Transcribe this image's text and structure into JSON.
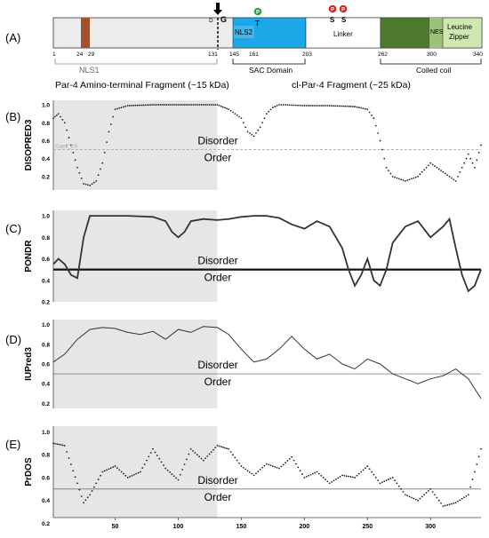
{
  "panel_labels": {
    "a": "(A)",
    "b": "(B)",
    "c": "(C)",
    "d": "(D)",
    "e": "(E)"
  },
  "domain_map": {
    "residue_ticks": [
      "1",
      "24",
      "29",
      "131",
      "145",
      "161",
      "203",
      "262",
      "300",
      "340"
    ],
    "site_letters": {
      "d": "D",
      "g": "G",
      "t": "T",
      "s1": "S",
      "s2": "S"
    },
    "phospho_badges": {
      "green": "P",
      "red1": "P",
      "red2": "P"
    },
    "domain_texts": {
      "nls2": "NLS2",
      "linker": "Linker",
      "nes": "NES",
      "lz1": "Leucine",
      "lz2": "Zipper"
    },
    "bracket_labels": {
      "nls1": "NLS1",
      "sac": "SAC Domain",
      "coiled": "Coiled coil"
    },
    "fragment_labels": {
      "amino": "Par-4 Amino-terminal Fragment (~15 kDa)",
      "cl": "cl-Par-4 Fragment (~25 kDa)"
    },
    "colors": {
      "nls1_mark": "#a0522d",
      "sac": "#1ea7e8",
      "coiled": "#4e7a2e",
      "nes": "#9dc07a",
      "leucine": "#cfe8b0",
      "green_p": "#2ea043",
      "red_p": "#e02020"
    }
  },
  "plot_text": {
    "disorder": "Disorder",
    "order": "Order",
    "cutoff": "Cutoff_0.5"
  },
  "chart_data": [
    {
      "type": "scatter",
      "ylabel": "DISOPRED3",
      "ylim": [
        0.05,
        1.05
      ],
      "yticks": [
        "1.0",
        "0.8",
        "0.6",
        "0.4",
        "0.2"
      ],
      "ytick_values": [
        1.0,
        0.8,
        0.6,
        0.4,
        0.2
      ],
      "threshold": 0.5,
      "threshold_style": "dashed",
      "shaded_range": [
        1,
        131
      ],
      "x": [
        1,
        5,
        10,
        15,
        20,
        25,
        30,
        35,
        40,
        45,
        50,
        60,
        80,
        100,
        120,
        131,
        140,
        150,
        155,
        160,
        165,
        170,
        175,
        180,
        185,
        200,
        220,
        240,
        250,
        255,
        260,
        265,
        270,
        280,
        290,
        300,
        310,
        320,
        330,
        335,
        340
      ],
      "y": [
        0.85,
        0.9,
        0.8,
        0.55,
        0.3,
        0.12,
        0.1,
        0.15,
        0.35,
        0.7,
        0.95,
        0.99,
        1.0,
        1.0,
        1.0,
        1.0,
        0.95,
        0.85,
        0.7,
        0.65,
        0.75,
        0.9,
        0.97,
        1.0,
        1.0,
        0.99,
        0.99,
        0.98,
        0.95,
        0.85,
        0.6,
        0.3,
        0.2,
        0.15,
        0.2,
        0.35,
        0.25,
        0.15,
        0.45,
        0.3,
        0.55
      ]
    },
    {
      "type": "line",
      "ylabel": "PONDR",
      "ylim": [
        0.2,
        1.05
      ],
      "yticks": [
        "1.0",
        "0.8",
        "0.6",
        "0.4",
        "0.2"
      ],
      "ytick_values": [
        1.0,
        0.8,
        0.6,
        0.4,
        0.2
      ],
      "threshold": 0.5,
      "threshold_style": "thick",
      "shaded_range": [
        1,
        131
      ],
      "x": [
        1,
        5,
        10,
        15,
        20,
        25,
        30,
        35,
        40,
        60,
        80,
        90,
        95,
        100,
        105,
        110,
        120,
        131,
        140,
        150,
        160,
        170,
        180,
        190,
        200,
        210,
        220,
        230,
        235,
        240,
        245,
        250,
        255,
        260,
        265,
        270,
        280,
        290,
        300,
        310,
        315,
        320,
        325,
        330,
        335,
        340
      ],
      "y": [
        0.55,
        0.6,
        0.55,
        0.45,
        0.42,
        0.8,
        1.0,
        1.0,
        1.0,
        1.0,
        0.99,
        0.95,
        0.85,
        0.8,
        0.85,
        0.95,
        0.97,
        0.96,
        0.97,
        0.99,
        1.0,
        1.0,
        0.98,
        0.92,
        0.88,
        0.95,
        0.9,
        0.7,
        0.5,
        0.35,
        0.45,
        0.6,
        0.4,
        0.35,
        0.5,
        0.75,
        0.9,
        0.95,
        0.8,
        0.9,
        0.97,
        0.7,
        0.45,
        0.3,
        0.35,
        0.5
      ]
    },
    {
      "type": "line",
      "ylabel": "IUPred3",
      "ylim": [
        0.15,
        1.05
      ],
      "yticks": [
        "1.0",
        "0.8",
        "0.6",
        "0.4",
        "0.2"
      ],
      "ytick_values": [
        1.0,
        0.8,
        0.6,
        0.4,
        0.2
      ],
      "threshold": 0.5,
      "threshold_style": "thin",
      "shaded_range": [
        1,
        131
      ],
      "x": [
        1,
        10,
        20,
        30,
        40,
        50,
        60,
        70,
        80,
        90,
        100,
        110,
        120,
        131,
        140,
        150,
        160,
        170,
        180,
        190,
        200,
        210,
        220,
        230,
        240,
        250,
        260,
        270,
        280,
        290,
        300,
        310,
        320,
        330,
        340
      ],
      "y": [
        0.62,
        0.7,
        0.85,
        0.95,
        0.97,
        0.96,
        0.92,
        0.9,
        0.93,
        0.85,
        0.95,
        0.92,
        0.98,
        0.97,
        0.9,
        0.75,
        0.62,
        0.65,
        0.75,
        0.88,
        0.75,
        0.65,
        0.7,
        0.6,
        0.55,
        0.65,
        0.6,
        0.5,
        0.45,
        0.4,
        0.45,
        0.48,
        0.55,
        0.45,
        0.25
      ]
    },
    {
      "type": "scatter",
      "ylabel": "PrDOS",
      "ylim": [
        0.25,
        1.05
      ],
      "yticks": [
        "1.0",
        "0.8",
        "0.6",
        "0.4",
        "0.2"
      ],
      "ytick_values": [
        1.0,
        0.8,
        0.6,
        0.4,
        0.2
      ],
      "threshold": 0.5,
      "threshold_style": "thin",
      "shaded_range": [
        1,
        131
      ],
      "x": [
        1,
        10,
        20,
        25,
        30,
        40,
        50,
        60,
        70,
        80,
        90,
        100,
        110,
        120,
        131,
        140,
        150,
        160,
        170,
        180,
        190,
        200,
        210,
        220,
        230,
        240,
        250,
        260,
        270,
        280,
        290,
        300,
        310,
        320,
        330,
        340
      ],
      "y": [
        0.9,
        0.88,
        0.55,
        0.38,
        0.45,
        0.65,
        0.7,
        0.6,
        0.65,
        0.85,
        0.68,
        0.58,
        0.85,
        0.75,
        0.88,
        0.85,
        0.7,
        0.62,
        0.72,
        0.68,
        0.78,
        0.6,
        0.65,
        0.55,
        0.62,
        0.6,
        0.7,
        0.55,
        0.6,
        0.45,
        0.4,
        0.5,
        0.35,
        0.38,
        0.45,
        0.85
      ]
    }
  ],
  "x_axis": {
    "ticks": [
      "50",
      "100",
      "150",
      "200",
      "250",
      "300"
    ],
    "tick_values": [
      50,
      100,
      150,
      200,
      250,
      300
    ],
    "range": [
      1,
      340
    ]
  }
}
